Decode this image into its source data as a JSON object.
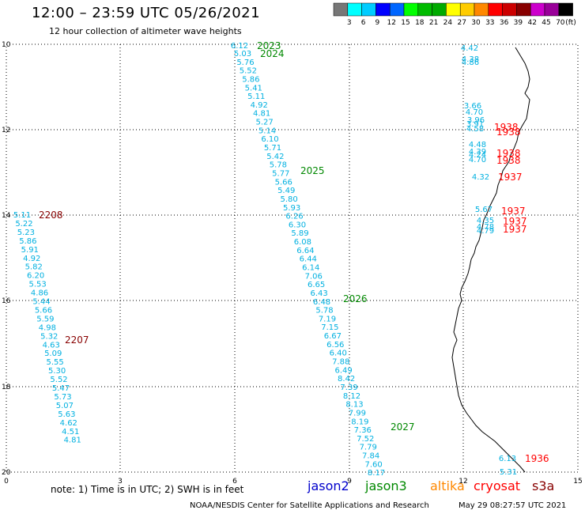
{
  "header": {
    "title": "12:00 – 23:59 UTC 05/26/2021",
    "subtitle": "12 hour collection of altimeter wave heights"
  },
  "color_scale": {
    "colors": [
      "#777777",
      "#00ffff",
      "#00ccff",
      "#0000ff",
      "#0066ff",
      "#00ff00",
      "#00bb00",
      "#00aa00",
      "#ffff00",
      "#ffcc00",
      "#ff8800",
      "#ff0000",
      "#cc0000",
      "#880000",
      "#cc00cc",
      "#990099",
      "#000000"
    ],
    "labels": [
      "3",
      "6",
      "9",
      "12",
      "15",
      "18",
      "21",
      "24",
      "27",
      "30",
      "33",
      "36",
      "39",
      "42",
      "45",
      "70"
    ],
    "unit": "(ft)"
  },
  "axes": {
    "x_ticks": [
      "0",
      "3",
      "6",
      "9",
      "12",
      "15"
    ],
    "y_ticks": [
      "10",
      "12",
      "14",
      "16",
      "18",
      "20"
    ]
  },
  "passes": [
    {
      "label": "2023",
      "color": "#008800",
      "values": [
        "6.12"
      ]
    },
    {
      "label": "2024",
      "color": "#008800",
      "values": [
        "5.03",
        "5.76",
        "5.52",
        "5.86",
        "5.41",
        "5.11",
        "4.92",
        "4.81",
        "5.27",
        "5.14",
        "6.10",
        "5.71",
        "5.42",
        "5.78"
      ]
    },
    {
      "label": "2025",
      "color": "#008800",
      "values": [
        "5.77",
        "5.66",
        "5.49",
        "5.80",
        "5.93",
        "6.26",
        "6.30",
        "5.89",
        "6.08",
        "6.64",
        "6.44",
        "6.14",
        "7.06",
        "6.65",
        "6.43"
      ]
    },
    {
      "label": "2026",
      "color": "#008800",
      "values": [
        "6.48",
        "5.78",
        "7.19",
        "7.15",
        "6.67",
        "6.56",
        "6.40",
        "7.88",
        "6.49",
        "8.42",
        "7.39",
        "8.12",
        "8.13",
        "7.99",
        "8.19"
      ]
    },
    {
      "label": "2027",
      "color": "#008800",
      "values": [
        "7.36",
        "7.52",
        "7.79",
        "7.84",
        "7.60",
        "8.17"
      ]
    },
    {
      "label": "2208",
      "color": "#880000",
      "values": [
        "5.11",
        "5.22",
        "5.23",
        "5.86",
        "5.91",
        "4.92",
        "5.82",
        "6.20",
        "5.53",
        "4.86",
        "5.44",
        "5.66",
        "5.59"
      ]
    },
    {
      "label": "2207",
      "color": "#880000",
      "values": [
        "4.98",
        "5.32",
        "4.63",
        "5.09",
        "5.55",
        "5.30",
        "5.52",
        "5.47",
        "5.73",
        "5.07",
        "5.63",
        "4.62",
        "4.51",
        "4.81"
      ]
    },
    {
      "label": "1938",
      "color": "#ff0000",
      "values": [
        "4.42",
        "4.38",
        "4.86",
        "3.66",
        "4.70",
        "3.96",
        "3.91",
        "4.58",
        "4.48",
        "4.39",
        "4.24",
        "4.70"
      ]
    },
    {
      "label": "1937",
      "color": "#ff0000",
      "values": [
        "4.32",
        "5.67",
        "4.35",
        "4.78",
        "4.79"
      ]
    },
    {
      "label": "1936",
      "color": "#ff0000",
      "values": [
        "6.13",
        "5.31"
      ]
    }
  ],
  "notes": {
    "note": "note:  1) Time is in UTC;  2) SWH is in feet",
    "credit": "NOAA/NESDIS Center for Satellite Applications and Research",
    "timestamp": "May 29 08:27:57 UTC 2021"
  },
  "satellites": [
    {
      "name": "jason2",
      "color": "#0000cc"
    },
    {
      "name": "jason3",
      "color": "#008800"
    },
    {
      "name": "altika",
      "color": "#ff8800"
    },
    {
      "name": "cryosat",
      "color": "#ff0000"
    },
    {
      "name": "s3a",
      "color": "#880000"
    }
  ]
}
